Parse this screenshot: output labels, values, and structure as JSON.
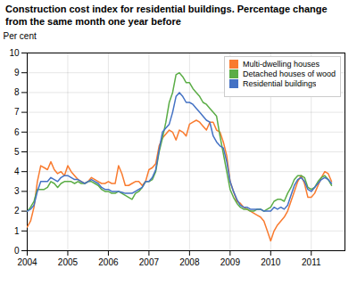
{
  "chart_data": {
    "type": "line",
    "title": "Construction cost index for residential buildings. Percentage change from the same month one year before",
    "ylabel": "Per cent",
    "xlim": [
      2004.0,
      2011.83
    ],
    "ylim": [
      0,
      10
    ],
    "xticks": [
      2004,
      2005,
      2006,
      2007,
      2008,
      2009,
      2010,
      2011
    ],
    "yticks": [
      0,
      1,
      2,
      3,
      4,
      5,
      6,
      7,
      8,
      9,
      10
    ],
    "grid": true,
    "legend": "upper right",
    "x": [
      2004.0,
      2004.083,
      2004.167,
      2004.25,
      2004.333,
      2004.417,
      2004.5,
      2004.583,
      2004.667,
      2004.75,
      2004.833,
      2004.917,
      2005.0,
      2005.083,
      2005.167,
      2005.25,
      2005.333,
      2005.417,
      2005.5,
      2005.583,
      2005.667,
      2005.75,
      2005.833,
      2005.917,
      2006.0,
      2006.083,
      2006.167,
      2006.25,
      2006.333,
      2006.417,
      2006.5,
      2006.583,
      2006.667,
      2006.75,
      2006.833,
      2006.917,
      2007.0,
      2007.083,
      2007.167,
      2007.25,
      2007.333,
      2007.417,
      2007.5,
      2007.583,
      2007.667,
      2007.75,
      2007.833,
      2007.917,
      2008.0,
      2008.083,
      2008.167,
      2008.25,
      2008.333,
      2008.417,
      2008.5,
      2008.583,
      2008.667,
      2008.75,
      2008.833,
      2008.917,
      2009.0,
      2009.083,
      2009.167,
      2009.25,
      2009.333,
      2009.417,
      2009.5,
      2009.583,
      2009.667,
      2009.75,
      2009.833,
      2009.917,
      2010.0,
      2010.083,
      2010.167,
      2010.25,
      2010.333,
      2010.417,
      2010.5,
      2010.583,
      2010.667,
      2010.75,
      2010.833,
      2010.917,
      2011.0,
      2011.083,
      2011.167,
      2011.25,
      2011.333,
      2011.417,
      2011.5
    ],
    "series": [
      {
        "name": "Multi-dwelling houses",
        "color": "#F97B2F",
        "values": [
          1.2,
          1.5,
          2.2,
          3.5,
          4.3,
          4.2,
          4.1,
          4.5,
          4.1,
          3.9,
          4.0,
          3.8,
          4.3,
          4.0,
          3.8,
          3.6,
          3.5,
          3.4,
          3.5,
          3.7,
          3.6,
          3.5,
          3.4,
          3.4,
          3.5,
          3.4,
          3.4,
          4.3,
          3.9,
          3.3,
          3.3,
          3.4,
          3.5,
          3.5,
          3.3,
          3.5,
          4.1,
          4.2,
          4.4,
          5.3,
          5.7,
          5.9,
          6.1,
          6.0,
          5.6,
          6.1,
          6.0,
          5.8,
          6.4,
          6.5,
          6.6,
          6.5,
          6.3,
          6.1,
          6.5,
          6.5,
          6.1,
          6.0,
          5.5,
          4.8,
          3.5,
          3.0,
          2.5,
          2.4,
          2.2,
          2.1,
          2.0,
          1.9,
          1.8,
          1.7,
          1.5,
          1.0,
          0.5,
          1.0,
          1.3,
          1.5,
          1.7,
          2.0,
          2.5,
          3.0,
          3.5,
          3.8,
          3.4,
          2.7,
          2.7,
          2.9,
          3.3,
          3.7,
          4.0,
          3.9,
          3.5
        ]
      },
      {
        "name": "Detached houses of wood",
        "color": "#5BAD46",
        "values": [
          2.0,
          2.2,
          2.5,
          3.1,
          3.1,
          3.1,
          3.2,
          3.5,
          3.4,
          3.2,
          3.4,
          3.5,
          3.5,
          3.5,
          3.4,
          3.5,
          3.4,
          3.4,
          3.5,
          3.5,
          3.4,
          3.3,
          3.1,
          3.0,
          3.0,
          2.9,
          2.9,
          3.0,
          2.9,
          2.8,
          2.7,
          2.6,
          2.9,
          3.0,
          3.2,
          3.5,
          3.5,
          3.6,
          4.0,
          5.0,
          5.7,
          6.5,
          7.5,
          8.0,
          8.9,
          9.0,
          8.8,
          8.5,
          8.5,
          8.2,
          8.0,
          7.8,
          7.5,
          7.4,
          7.2,
          7.0,
          6.8,
          5.8,
          4.9,
          4.0,
          3.1,
          2.7,
          2.4,
          2.2,
          2.1,
          2.1,
          2.0,
          2.0,
          2.1,
          2.1,
          2.0,
          2.1,
          2.2,
          2.5,
          2.6,
          2.6,
          2.5,
          2.9,
          3.2,
          3.6,
          3.8,
          3.8,
          3.7,
          3.2,
          3.1,
          3.2,
          3.5,
          3.7,
          3.8,
          3.6,
          3.3
        ]
      },
      {
        "name": "Residential buildings",
        "color": "#4472C4",
        "values": [
          2.0,
          2.1,
          2.3,
          3.0,
          3.5,
          3.5,
          3.5,
          3.7,
          3.6,
          3.5,
          3.7,
          3.8,
          3.8,
          3.7,
          3.6,
          3.6,
          3.5,
          3.4,
          3.5,
          3.6,
          3.5,
          3.4,
          3.2,
          3.1,
          3.1,
          3.0,
          3.0,
          3.0,
          2.95,
          2.9,
          2.9,
          2.9,
          3.0,
          3.1,
          3.2,
          3.5,
          3.5,
          3.7,
          4.1,
          5.1,
          6.0,
          6.2,
          6.4,
          7.0,
          7.8,
          8.0,
          7.8,
          7.5,
          7.5,
          7.4,
          7.2,
          7.0,
          6.8,
          6.6,
          6.5,
          5.8,
          5.5,
          5.3,
          5.2,
          4.5,
          3.5,
          3.0,
          2.6,
          2.3,
          2.2,
          2.2,
          2.1,
          2.1,
          2.1,
          2.1,
          2.0,
          2.0,
          2.0,
          2.2,
          2.1,
          2.2,
          2.1,
          2.3,
          2.8,
          3.3,
          3.6,
          3.7,
          3.5,
          3.1,
          3.0,
          3.2,
          3.4,
          3.6,
          3.7,
          3.6,
          3.4
        ]
      }
    ]
  }
}
